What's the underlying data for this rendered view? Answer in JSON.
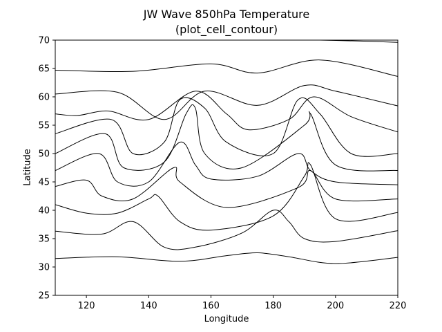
{
  "chart_data": {
    "type": "line",
    "title": "JW Wave 850hPa Temperature",
    "subtitle": "(plot_cell_contour)",
    "xlabel": "Longitude",
    "ylabel": "Latitude",
    "xlim": [
      110,
      220
    ],
    "ylim": [
      25,
      70
    ],
    "xticks": [
      120,
      140,
      160,
      180,
      200,
      220
    ],
    "yticks": [
      25,
      30,
      35,
      40,
      45,
      50,
      55,
      60,
      65,
      70
    ],
    "grid": false,
    "legend": "none",
    "line_color": "#000000",
    "series": [
      {
        "x": [
          110,
          130,
          150,
          165,
          175,
          185,
          200,
          220
        ],
        "y": [
          31.5,
          31.8,
          31.0,
          32.0,
          32.5,
          31.8,
          30.6,
          31.7
        ]
      },
      {
        "x": [
          110,
          125,
          135,
          145,
          155,
          170,
          180,
          185,
          190,
          200,
          220
        ],
        "y": [
          36.3,
          35.8,
          38.0,
          33.5,
          33.5,
          36.0,
          40.0,
          38.0,
          35.0,
          34.5,
          36.4
        ]
      },
      {
        "x": [
          110,
          120,
          130,
          140,
          143,
          150,
          160,
          180,
          190,
          192,
          200,
          220
        ],
        "y": [
          41.0,
          39.5,
          39.5,
          42.0,
          42.5,
          38.0,
          36.5,
          39.0,
          46.0,
          48.0,
          38.5,
          39.6
        ]
      },
      {
        "x": [
          110,
          120,
          125,
          135,
          148,
          150,
          165,
          188,
          192,
          200,
          220
        ],
        "y": [
          44.2,
          45.3,
          42.5,
          42.0,
          47.5,
          45.0,
          40.5,
          44.0,
          47.0,
          42.0,
          42.0
        ]
      },
      {
        "x": [
          110,
          124,
          130,
          140,
          150,
          155,
          160,
          175,
          188,
          192,
          200,
          220
        ],
        "y": [
          47.0,
          50.0,
          45.0,
          45.0,
          52.0,
          48.0,
          45.5,
          46.0,
          50.0,
          47.0,
          45.0,
          44.5
        ]
      },
      {
        "x": [
          110,
          126,
          132,
          145,
          152,
          155,
          158,
          170,
          190,
          192,
          200,
          220
        ],
        "y": [
          50.0,
          53.5,
          47.5,
          48.5,
          57.0,
          58.0,
          50.0,
          47.5,
          55.0,
          57.0,
          48.0,
          47.0
        ]
      },
      {
        "x": [
          110,
          128,
          135,
          145,
          150,
          158,
          165,
          180,
          188,
          195,
          205,
          220
        ],
        "y": [
          53.5,
          56.0,
          50.0,
          52.0,
          59.5,
          58.0,
          52.0,
          50.0,
          59.5,
          57.0,
          50.0,
          50.0
        ]
      },
      {
        "x": [
          110,
          117,
          127,
          140,
          155,
          165,
          172,
          185,
          193,
          205,
          220
        ],
        "y": [
          57.0,
          56.7,
          57.5,
          56.0,
          61.0,
          57.0,
          54.2,
          56.0,
          60.0,
          56.5,
          53.8
        ]
      },
      {
        "x": [
          110,
          130,
          145,
          158,
          175,
          190,
          200,
          220
        ],
        "y": [
          60.5,
          60.8,
          56.0,
          61.0,
          58.5,
          62.0,
          61.0,
          58.4
        ]
      },
      {
        "x": [
          110,
          135,
          160,
          175,
          195,
          220
        ],
        "y": [
          64.7,
          64.5,
          65.8,
          64.2,
          66.5,
          63.6
        ]
      },
      {
        "x": [
          180,
          195,
          210,
          220
        ],
        "y": [
          70.2,
          70.0,
          69.8,
          69.6
        ]
      }
    ]
  }
}
